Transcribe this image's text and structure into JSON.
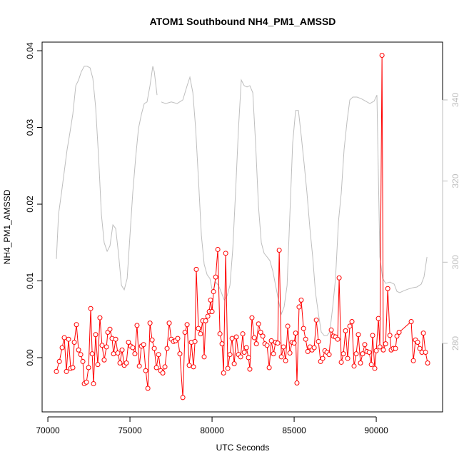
{
  "chart_data": {
    "type": "line",
    "title": "ATOM1 Southbound NH4_PM1_AMSSD",
    "xlabel": "UTC Seconds",
    "ylabel": "NH4_PM1_AMSSD",
    "xlim": [
      69650,
      94040
    ],
    "xticks": [
      70000,
      75000,
      80000,
      85000,
      90000
    ],
    "ylim": [
      -0.00707,
      0.04112
    ],
    "yticks": [
      {
        "value": 0,
        "label": "0.00"
      },
      {
        "value": 0.01,
        "label": "0.01"
      },
      {
        "value": 0.02,
        "label": "0.02"
      },
      {
        "value": 0.03,
        "label": "0.03"
      },
      {
        "value": 0.04,
        "label": "0.04"
      }
    ],
    "y2lim": [
      263.1,
      354.25
    ],
    "y2ticks": [
      280,
      300,
      320,
      340
    ],
    "y2color": "#bebebe",
    "series": [
      {
        "color": "#bebebe",
        "axis": "y2",
        "markers": false,
        "x": [
          70520,
          70650,
          70830,
          71000,
          71170,
          71350,
          71520,
          71700,
          71870,
          72040,
          72220,
          72390,
          72570,
          72740,
          72910,
          73090,
          73260,
          73430,
          73610,
          73780,
          73960,
          74130,
          74300,
          74480,
          74650,
          74830,
          75000,
          75170,
          75350,
          75520,
          75700,
          75870,
          76040,
          76220,
          76390,
          76480,
          76650,
          76800,
          76910,
          77170,
          77520,
          77870,
          78220,
          78480,
          78650,
          78830,
          79000,
          79170,
          79350,
          79520,
          79700,
          79870,
          80040,
          80220,
          80390,
          80570,
          80740,
          80910,
          81090,
          81260,
          81430,
          81610,
          81780,
          81960,
          82130,
          82300,
          82480,
          82650,
          82830,
          83000,
          83170,
          83350,
          83520,
          83700,
          83870,
          84040,
          84220,
          84390,
          84570,
          84740,
          84910,
          85090,
          85260,
          85430,
          85610,
          85780,
          85960,
          86130,
          86300,
          86480,
          86650,
          86830,
          87000,
          87170,
          87350,
          87520,
          87700,
          87870,
          88040,
          88220,
          88390,
          88570,
          88830,
          89090,
          89350,
          89610,
          89870,
          90040,
          90220,
          90390,
          90570,
          90830,
          91090,
          91260,
          91430,
          91700,
          91960,
          92220,
          92480,
          92740,
          92910,
          93090
        ],
        "values": [
          300.8,
          311.8,
          317.1,
          322.4,
          327.7,
          332.1,
          336.5,
          343.5,
          344.9,
          347.0,
          348.3,
          348.3,
          347.9,
          345.3,
          338.2,
          325.9,
          311.8,
          304.8,
          302.7,
          304.0,
          309.2,
          308.3,
          302.2,
          294.3,
          293.2,
          296.0,
          306.6,
          317.1,
          325.9,
          333.0,
          336.5,
          339.1,
          339.5,
          343.5,
          348.3,
          347.0,
          341.2,
          null,
          339.5,
          339.1,
          339.5,
          339.1,
          340.0,
          343.5,
          345.6,
          341.8,
          333.0,
          320.6,
          306.6,
          299.5,
          296.9,
          296.0,
          292.5,
          295.1,
          294.3,
          292.5,
          290.7,
          291.6,
          294.3,
          303.1,
          317.1,
          333.0,
          344.9,
          343.5,
          343.2,
          343.5,
          341.8,
          329.4,
          313.6,
          304.8,
          302.2,
          301.3,
          300.4,
          297.8,
          294.3,
          290.7,
          287.2,
          289.0,
          294.3,
          311.8,
          329.4,
          337.4,
          337.4,
          331.2,
          324.2,
          317.1,
          308.3,
          301.3,
          292.5,
          287.2,
          282.8,
          281.9,
          281.9,
          282.8,
          289.0,
          296.0,
          310.1,
          317.1,
          327.7,
          334.7,
          340.0,
          340.7,
          340.7,
          340.3,
          339.7,
          339.1,
          339.7,
          341.2,
          301.3,
          296.0,
          294.8,
          295.1,
          294.6,
          292.8,
          292.5,
          293.0,
          293.4,
          293.7,
          293.9,
          294.6,
          296.4,
          301.3
        ]
      },
      {
        "color": "#ff0000",
        "markers": true,
        "x": [
          70520,
          70700,
          70870,
          71000,
          71130,
          71260,
          71390,
          71520,
          71610,
          71740,
          71870,
          72000,
          72130,
          72220,
          72350,
          72480,
          72610,
          72700,
          72780,
          72910,
          73040,
          73170,
          73300,
          73430,
          73570,
          73650,
          73780,
          73910,
          74000,
          74130,
          74260,
          74390,
          74520,
          74650,
          74780,
          74910,
          75040,
          75170,
          75300,
          75430,
          75570,
          75700,
          75830,
          75960,
          76090,
          76220,
          76350,
          76480,
          76610,
          76740,
          76870,
          77000,
          77130,
          77260,
          77390,
          77520,
          77650,
          77780,
          77910,
          78040,
          78220,
          78350,
          78480,
          78610,
          78740,
          78870,
          78960,
          79040,
          79170,
          79300,
          79430,
          79520,
          79610,
          79740,
          79830,
          79910,
          80000,
          80090,
          80220,
          80350,
          80480,
          80610,
          80700,
          80830,
          80960,
          81090,
          81220,
          81350,
          81480,
          81610,
          81740,
          81870,
          81960,
          82090,
          82220,
          82300,
          82430,
          82570,
          82700,
          82830,
          82960,
          83090,
          83220,
          83350,
          83480,
          83610,
          83740,
          83870,
          84000,
          84090,
          84220,
          84350,
          84480,
          84610,
          84740,
          84870,
          85000,
          85090,
          85170,
          85300,
          85430,
          85570,
          85700,
          85830,
          85960,
          86090,
          86220,
          86350,
          86480,
          86610,
          86740,
          86870,
          87000,
          87130,
          87260,
          87390,
          87520,
          87650,
          87740,
          87870,
          88000,
          88130,
          88260,
          88390,
          88520,
          88650,
          88780,
          88910,
          89040,
          89170,
          89300,
          89430,
          89570,
          89700,
          89780,
          89910,
          90000,
          90130,
          90220,
          90350,
          90430,
          90570,
          90700,
          90830,
          90910,
          91040,
          91170,
          91260,
          91390,
          92130,
          92260,
          92390,
          92520,
          92650,
          92780,
          92870,
          93000,
          93130
        ],
        "values": [
          -0.0018,
          -0.0005,
          0.0013,
          0.0026,
          -0.0018,
          0.0024,
          -0.0014,
          -0.0013,
          0.002,
          0.0043,
          0.001,
          0.0004,
          -0.0005,
          -0.0034,
          -0.0032,
          -0.0013,
          0.0064,
          0.0005,
          -0.0034,
          0.003,
          -0.0009,
          0.0052,
          0.0016,
          -0.0003,
          0.0014,
          0.0033,
          0.0037,
          0.0025,
          0.0005,
          0.0024,
          0.0006,
          -0.0007,
          0.001,
          -0.001,
          -0.0007,
          0.002,
          0.0015,
          0.0013,
          0.0005,
          0.0042,
          -0.0011,
          0.0015,
          0.0017,
          -0.0017,
          -0.004,
          0.0045,
          0.0023,
          0.0012,
          -0.0013,
          0.0004,
          -0.0017,
          -0.002,
          -0.0012,
          0.0012,
          0.0045,
          0.0024,
          0.0021,
          0.0022,
          0.0025,
          0.0005,
          -0.0052,
          0.0033,
          0.0043,
          -0.001,
          0.002,
          -0.0012,
          0.0021,
          0.0115,
          0.0038,
          0.0031,
          0.0048,
          0.0001,
          0.0048,
          0.0054,
          0.006,
          0.0075,
          0.006,
          0.0086,
          0.0105,
          0.0141,
          0.0031,
          0.0018,
          -0.002,
          0.0136,
          -0.0014,
          0.0004,
          0.0025,
          -0.0008,
          0.0027,
          0.0004,
          0.0001,
          0.0031,
          0.0007,
          0.0013,
          0.0,
          -0.0015,
          0.0052,
          0.0026,
          0.0018,
          0.0044,
          0.0033,
          0.0028,
          0.0018,
          0.0016,
          -0.0013,
          0.0022,
          0.0005,
          0.002,
          0.0019,
          0.014,
          0.0001,
          0.0014,
          -0.0004,
          0.0041,
          0.0006,
          0.002,
          0.0019,
          0.0032,
          -0.0033,
          0.0066,
          0.0075,
          0.0038,
          0.0024,
          0.0008,
          0.0014,
          0.001,
          0.0013,
          0.0049,
          0.0021,
          -0.0005,
          -0.0001,
          0.0009,
          0.0007,
          0.0004,
          0.0036,
          0.0028,
          0.0027,
          0.0024,
          0.0104,
          -0.0006,
          0.0005,
          0.0035,
          -0.0001,
          0.0041,
          0.0047,
          -0.0011,
          0.0005,
          0.003,
          -0.0007,
          0.0005,
          0.0017,
          0.0008,
          0.0007,
          -0.0009,
          0.0029,
          -0.0014,
          0.0009,
          0.0051,
          0.0014,
          0.0394,
          0.001,
          0.0018,
          0.009,
          0.0029,
          0.001,
          0.0012,
          0.0012,
          0.0028,
          0.0033,
          0.0047,
          -0.0004,
          0.0023,
          0.002,
          0.0012,
          0.0007,
          0.0032,
          0.0007,
          -0.0007
        ]
      }
    ]
  }
}
